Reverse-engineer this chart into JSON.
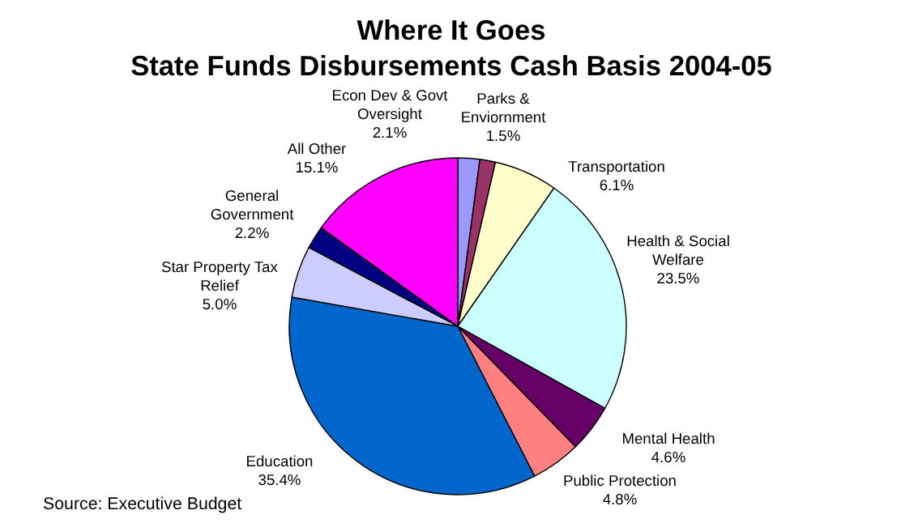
{
  "chart_data": {
    "type": "pie",
    "title": "Where It Goes",
    "subtitle": "State Funds Disbursements Cash Basis 2004-05",
    "categories": [
      "Econ Dev & Govt Oversight",
      "Parks & Enviornment",
      "Transportation",
      "Health & Social Welfare",
      "Mental Health",
      "Public Protection",
      "Education",
      "Star Property Tax Relief",
      "General Government",
      "All Other"
    ],
    "values": [
      2.1,
      1.5,
      6.1,
      23.5,
      4.6,
      4.8,
      35.4,
      5.0,
      2.2,
      15.1
    ],
    "colors": [
      "#9999ff",
      "#993366",
      "#ffffcc",
      "#ccffff",
      "#660066",
      "#ff8080",
      "#0066cc",
      "#ccccff",
      "#000080",
      "#ff00ff"
    ],
    "value_labels": [
      "2.1%",
      "1.5%",
      "6.1%",
      "23.5%",
      "4.6%",
      "4.8%",
      "35.4%",
      "5.0%",
      "2.2%",
      "15.1%"
    ],
    "annotations": [
      "Source: Executive Budget"
    ]
  }
}
